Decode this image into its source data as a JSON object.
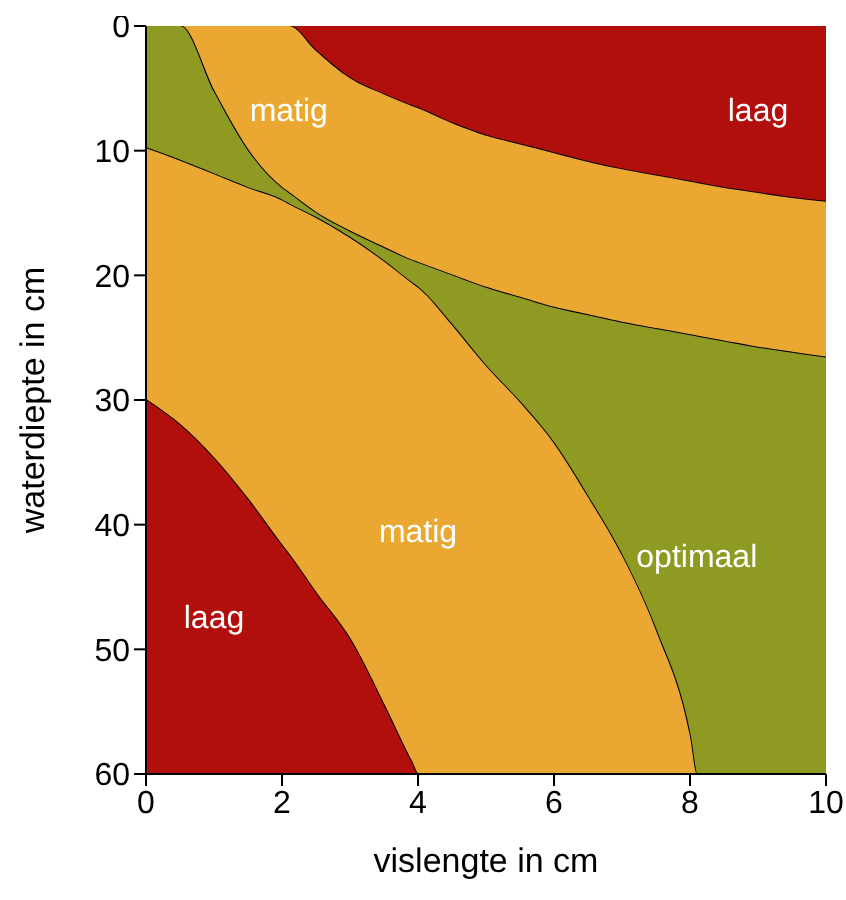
{
  "chart_data": {
    "type": "area",
    "stacked": true,
    "xlabel": "vislengte in cm",
    "ylabel": "waterdiepte in cm",
    "x": [
      0,
      0.5,
      1,
      1.5,
      2,
      2.1,
      2.5,
      3,
      3.5,
      3.9,
      4,
      4.5,
      5,
      5.5,
      6,
      6.5,
      7,
      7.5,
      8,
      8.1,
      8.5,
      9,
      9.5,
      10
    ],
    "series": [
      {
        "name": "laag",
        "color": "#b00f0c",
        "values": [
          0,
          0,
          0,
          0,
          0,
          0,
          2,
          4.2,
          5.5,
          6.4,
          6.6,
          7.8,
          8.8,
          9.5,
          10.2,
          10.9,
          11.5,
          12,
          12.5,
          12.6,
          13,
          13.4,
          13.8,
          14.1
        ]
      },
      {
        "name": "matig",
        "color": "#eaa833",
        "values": [
          0,
          0,
          5.3,
          10,
          13,
          13.4,
          13,
          12.3,
          12.3,
          12.4,
          12.4,
          12.2,
          12.2,
          12.3,
          12.4,
          12.3,
          12.3,
          12.3,
          12.3,
          12.3,
          12.3,
          12.4,
          12.4,
          12.5
        ]
      },
      {
        "name": "optimaal",
        "color": "#8f9a22",
        "values": [
          9.8,
          10.8,
          6.6,
          3,
          1,
          0.9,
          0.4,
          0.5,
          1.1,
          1.8,
          2,
          4,
          6.3,
          8.4,
          10.9,
          14.6,
          18.7,
          24.2,
          32.2,
          35.1,
          34.7,
          34.2,
          33.8,
          33.4
        ]
      },
      {
        "name": "matig",
        "color": "#eaa833",
        "values": [
          20.2,
          21.2,
          22.8,
          25,
          27.7,
          28.1,
          30.1,
          32.2,
          35.6,
          38.4,
          39,
          36,
          32.7,
          29.8,
          26.5,
          22.2,
          17.5,
          11.5,
          3,
          0,
          0,
          0,
          0,
          0
        ]
      },
      {
        "name": "laag",
        "color": "#b00f0c",
        "values": [
          30,
          28,
          25.3,
          22,
          18.3,
          17.6,
          14.5,
          10.8,
          5.5,
          1,
          0,
          0,
          0,
          0,
          0,
          0,
          0,
          0,
          0,
          0,
          0,
          0,
          0,
          0
        ]
      }
    ],
    "xlim": [
      0,
      10
    ],
    "xticks": [
      0,
      2,
      4,
      6,
      8,
      10
    ],
    "ylim": [
      60,
      0
    ],
    "yticks": [
      0,
      10,
      20,
      30,
      40,
      50,
      60
    ]
  }
}
